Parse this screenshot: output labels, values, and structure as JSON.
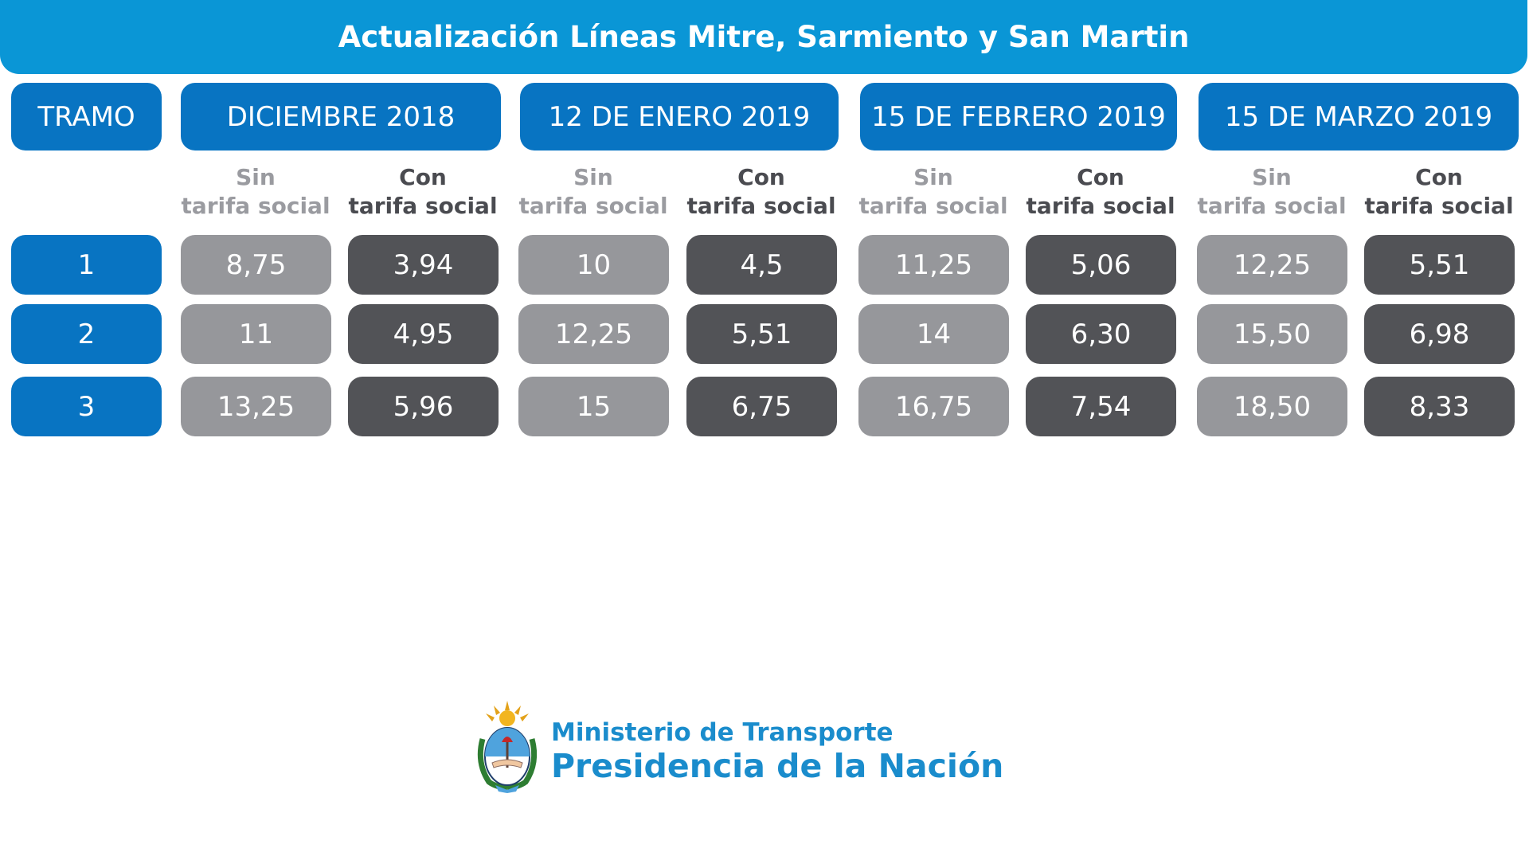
{
  "title": "Actualización Líneas Mitre, Sarmiento y San Martin",
  "chart_data": {
    "type": "table",
    "title": "Actualización Líneas Mitre, Sarmiento y San Martin",
    "row_header": "TRAMO",
    "rows": [
      "1",
      "2",
      "3"
    ],
    "periods": [
      {
        "label": "DICIEMBRE 2018",
        "sin_label_1": "Sin",
        "sin_label_2": "tarifa social",
        "con_label_1": "Con",
        "con_label_2": "tarifa social",
        "sin": [
          "8,75",
          "11",
          "13,25"
        ],
        "con": [
          "3,94",
          "4,95",
          "5,96"
        ]
      },
      {
        "label": "12 DE ENERO 2019",
        "sin_label_1": "Sin",
        "sin_label_2": "tarifa social",
        "con_label_1": "Con",
        "con_label_2": "tarifa social",
        "sin": [
          "10",
          "12,25",
          "15"
        ],
        "con": [
          "4,5",
          "5,51",
          "6,75"
        ]
      },
      {
        "label": "15 DE FEBRERO 2019",
        "sin_label_1": "Sin",
        "sin_label_2": "tarifa social",
        "con_label_1": "Con",
        "con_label_2": "tarifa social",
        "sin": [
          "11,25",
          "14",
          "16,75"
        ],
        "con": [
          "5,06",
          "6,30",
          "7,54"
        ]
      },
      {
        "label": "15 DE MARZO 2019",
        "sin_label_1": "Sin",
        "sin_label_2": "tarifa social",
        "con_label_1": "Con",
        "con_label_2": "tarifa social",
        "sin": [
          "12,25",
          "15,50",
          "18,50"
        ],
        "con": [
          "5,51",
          "6,98",
          "8,33"
        ]
      }
    ]
  },
  "colors": {
    "title_bg": "#0a96d6",
    "header_bg": "#0874c2",
    "sin_bg": "#96979b",
    "con_bg": "#525357",
    "footer_text": "#1a8ccc"
  },
  "footer": {
    "line1": "Ministerio de Transporte",
    "line2": "Presidencia de la Nación",
    "seal_icon": "argentina-coat-of-arms-icon"
  }
}
